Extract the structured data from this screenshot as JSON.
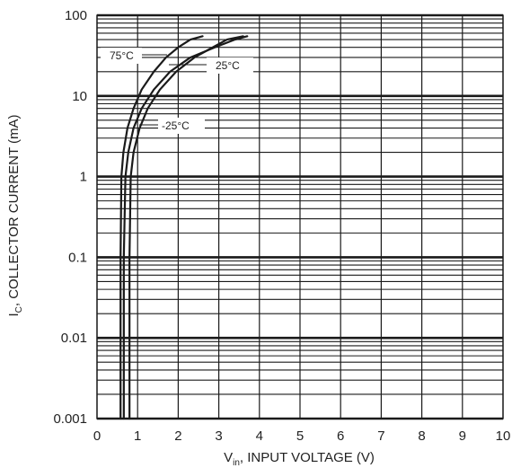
{
  "chart_data": {
    "type": "line",
    "xlabel": {
      "main": "V",
      "sub": "in",
      "rest": ", INPUT VOLTAGE (V)"
    },
    "ylabel": {
      "main": "I",
      "sub": "C",
      "rest": ", COLLECTOR CURRENT (mA)"
    },
    "xlim": [
      0,
      10
    ],
    "ylim": [
      0.001,
      100
    ],
    "yscale": "log",
    "grid": true,
    "x_ticks": [
      "0",
      "1",
      "2",
      "3",
      "4",
      "5",
      "6",
      "7",
      "8",
      "9",
      "10"
    ],
    "y_ticks": [
      "0.001",
      "0.01",
      "0.1",
      "1",
      "10",
      "100"
    ],
    "series": [
      {
        "name": "75°C",
        "x": [
          0.58,
          0.58,
          0.6,
          0.65,
          0.75,
          0.9,
          1.1,
          1.4,
          1.7,
          2.0,
          2.3,
          2.6
        ],
        "y": [
          0.001,
          0.1,
          1,
          2,
          4,
          7,
          12,
          20,
          30,
          40,
          50,
          55
        ]
      },
      {
        "name": "25°C",
        "x": [
          0.66,
          0.66,
          0.7,
          0.77,
          0.9,
          1.1,
          1.4,
          1.8,
          2.3,
          2.9,
          3.4,
          3.7
        ],
        "y": [
          0.001,
          0.1,
          1,
          2,
          4,
          7,
          12,
          20,
          30,
          40,
          50,
          55
        ]
      },
      {
        "name": "-25°C",
        "x": [
          0.8,
          0.8,
          0.83,
          0.9,
          1.05,
          1.25,
          1.55,
          1.95,
          2.4,
          2.85,
          3.2,
          3.6
        ],
        "y": [
          0.001,
          0.1,
          1,
          2,
          4,
          7,
          12,
          20,
          30,
          40,
          50,
          55
        ]
      }
    ],
    "annotations": [
      {
        "text": "75°C",
        "series": "75°C"
      },
      {
        "text": "25°C",
        "series": "25°C"
      },
      {
        "text": "-25°C",
        "series": "-25°C"
      }
    ]
  }
}
